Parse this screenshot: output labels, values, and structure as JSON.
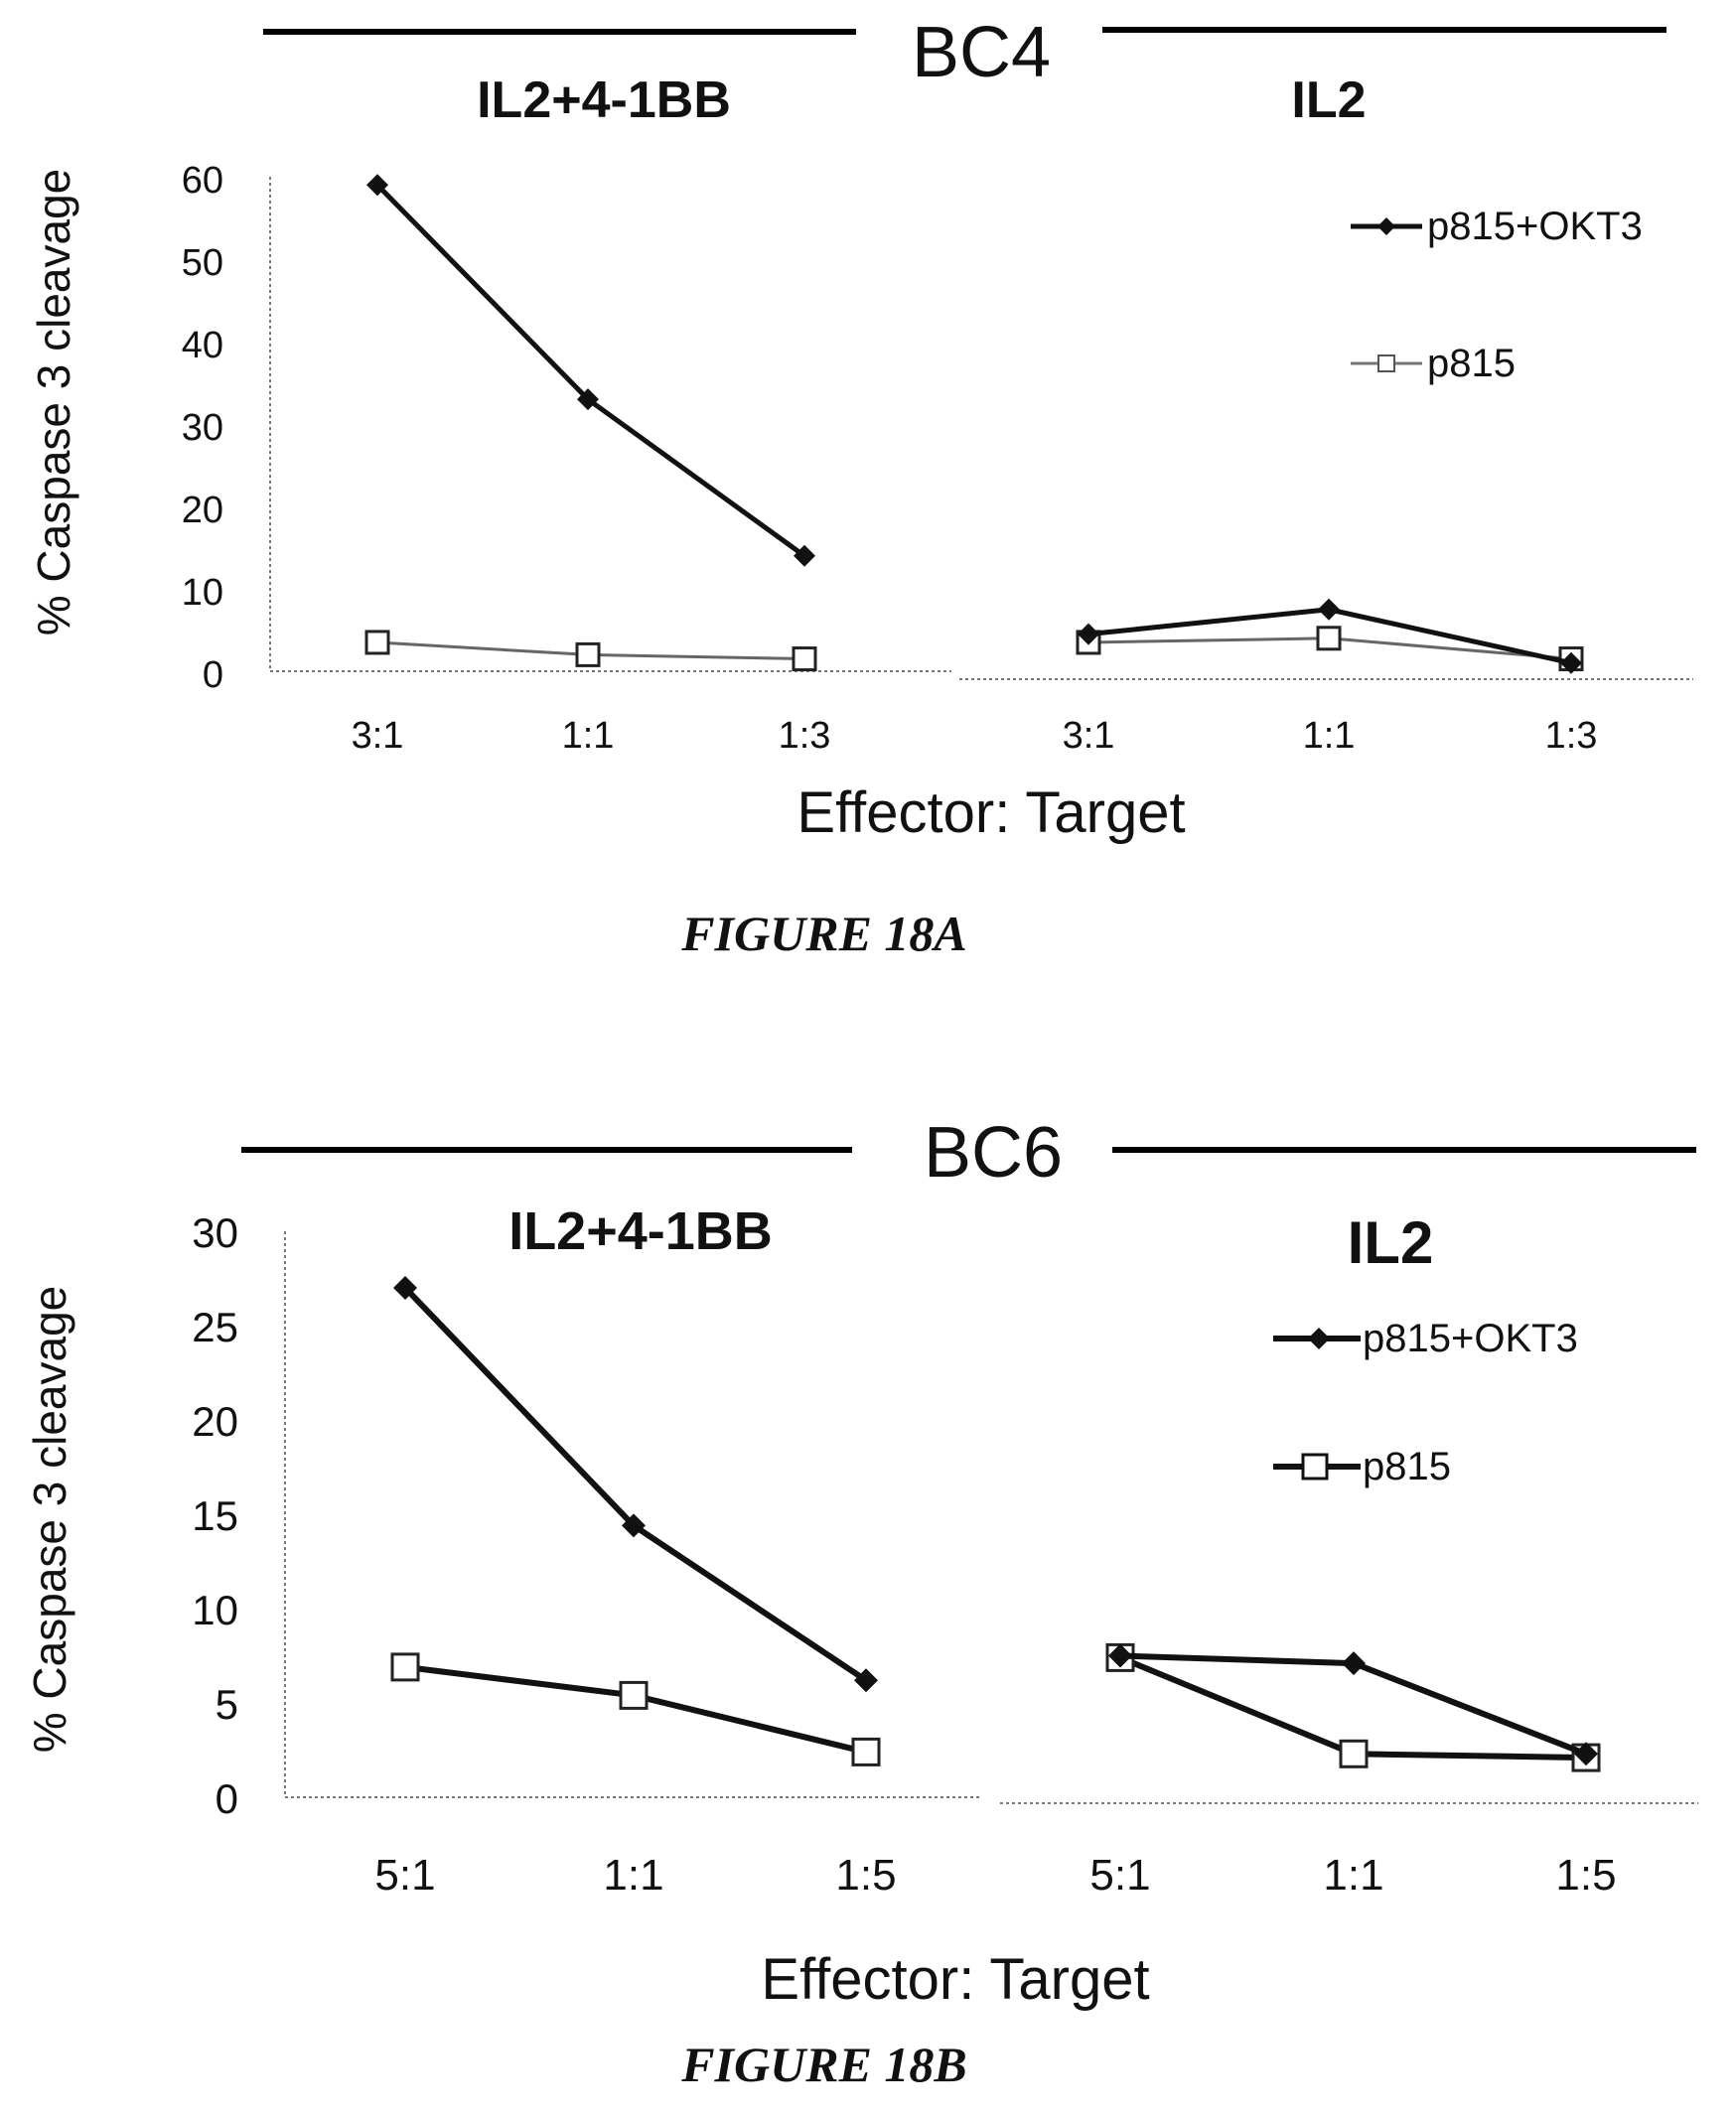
{
  "figures": [
    {
      "header": "BC4",
      "caption": "FIGURE 18A",
      "ylabel": "% Caspase 3 cleavage",
      "xlabel": "Effector: Target",
      "yticks": [
        "0",
        "10",
        "20",
        "30",
        "40",
        "50",
        "60"
      ],
      "legend": [
        "p815+OKT3",
        "p815"
      ],
      "panels": [
        {
          "title": "IL2+4-1BB",
          "xticks": [
            "3:1",
            "1:1",
            "1:3"
          ]
        },
        {
          "title": "IL2",
          "xticks": [
            "3:1",
            "1:1",
            "1:3"
          ]
        }
      ]
    },
    {
      "header": "BC6",
      "caption": "FIGURE 18B",
      "ylabel": "% Caspase 3 cleavage",
      "xlabel": "Effector: Target",
      "yticks": [
        "0",
        "5",
        "10",
        "15",
        "20",
        "25",
        "30"
      ],
      "legend": [
        "p815+OKT3",
        "p815"
      ],
      "panels": [
        {
          "title": "IL2+4-1BB",
          "xticks": [
            "5:1",
            "1:1",
            "1:5"
          ]
        },
        {
          "title": "IL2",
          "xticks": [
            "5:1",
            "1:1",
            "1:5"
          ]
        }
      ]
    }
  ],
  "chart_data": [
    {
      "type": "line",
      "title": "BC4",
      "ylabel": "% Caspase 3 cleavage",
      "xlabel": "Effector: Target",
      "ylim": [
        0,
        60
      ],
      "legend_position": "top-right",
      "panels": [
        {
          "name": "IL2+4-1BB",
          "categories": [
            "3:1",
            "1:1",
            "1:3"
          ],
          "series": [
            {
              "name": "p815+OKT3",
              "values": [
                59,
                33,
                14
              ],
              "marker": "filled-diamond"
            },
            {
              "name": "p815",
              "values": [
                3.5,
                2,
                1.5
              ],
              "marker": "open-square"
            }
          ]
        },
        {
          "name": "IL2",
          "categories": [
            "3:1",
            "1:1",
            "1:3"
          ],
          "series": [
            {
              "name": "p815+OKT3",
              "values": [
                4.5,
                7.5,
                1
              ],
              "marker": "filled-diamond"
            },
            {
              "name": "p815",
              "values": [
                3.5,
                4,
                1.5
              ],
              "marker": "open-square"
            }
          ]
        }
      ]
    },
    {
      "type": "line",
      "title": "BC6",
      "ylabel": "% Caspase 3 cleavage",
      "xlabel": "Effector: Target",
      "ylim": [
        0,
        30
      ],
      "legend_position": "top-right",
      "panels": [
        {
          "name": "IL2+4-1BB",
          "categories": [
            "5:1",
            "1:1",
            "1:5"
          ],
          "series": [
            {
              "name": "p815+OKT3",
              "values": [
                27,
                14.4,
                6.2
              ],
              "marker": "filled-diamond"
            },
            {
              "name": "p815",
              "values": [
                6.9,
                5.4,
                2.4
              ],
              "marker": "open-square"
            }
          ]
        },
        {
          "name": "IL2",
          "categories": [
            "5:1",
            "1:1",
            "1:5"
          ],
          "series": [
            {
              "name": "p815+OKT3",
              "values": [
                7.5,
                7.1,
                2.3
              ],
              "marker": "filled-diamond"
            },
            {
              "name": "p815",
              "values": [
                7.4,
                2.3,
                2.1
              ],
              "marker": "open-square"
            }
          ]
        }
      ]
    }
  ]
}
